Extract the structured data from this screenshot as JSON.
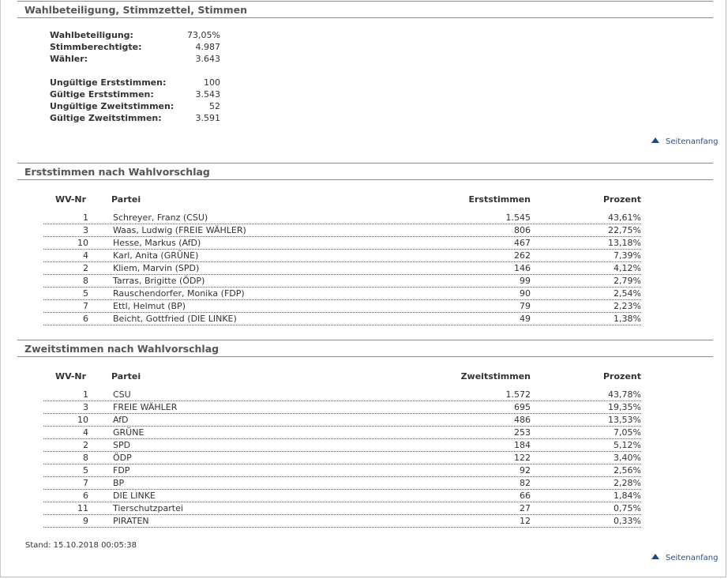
{
  "sections": {
    "turnout_title": "Wahlbeteiligung, Stimmzettel, Stimmen",
    "first_votes_title": "Erststimmen nach Wahlvorschlag",
    "second_votes_title": "Zweitstimmen nach Wahlvorschlag"
  },
  "turnout": [
    {
      "label": "Wahlbeteiligung:",
      "value": "73,05%"
    },
    {
      "label": "Stimmberechtigte:",
      "value": "4.987"
    },
    {
      "label": "Wähler:",
      "value": "3.643"
    }
  ],
  "ballots": [
    {
      "label": "Ungültige Erststimmen:",
      "value": "100"
    },
    {
      "label": "Gültige Erststimmen:",
      "value": "3.543"
    },
    {
      "label": "Ungültige Zweitstimmen:",
      "value": "52"
    },
    {
      "label": "Gültige Zweitstimmen:",
      "value": "3.591"
    }
  ],
  "top_link": "Seitenanfang",
  "first_table": {
    "headers": {
      "nr": "WV-Nr",
      "party": "Partei",
      "votes": "Erststimmen",
      "pct": "Prozent"
    },
    "rows": [
      {
        "nr": "1",
        "name": "Schreyer, Franz (CSU)",
        "votes": "1.545",
        "pct": "43,61%"
      },
      {
        "nr": "3",
        "name": "Waas, Ludwig (FREIE WÄHLER)",
        "votes": "806",
        "pct": "22,75%"
      },
      {
        "nr": "10",
        "name": "Hesse, Markus (AfD)",
        "votes": "467",
        "pct": "13,18%"
      },
      {
        "nr": "4",
        "name": "Karl, Anita (GRÜNE)",
        "votes": "262",
        "pct": "7,39%"
      },
      {
        "nr": "2",
        "name": "Kliem, Marvin (SPD)",
        "votes": "146",
        "pct": "4,12%"
      },
      {
        "nr": "8",
        "name": "Tarras, Brigitte (ÖDP)",
        "votes": "99",
        "pct": "2,79%"
      },
      {
        "nr": "5",
        "name": "Rauschendorfer, Monika (FDP)",
        "votes": "90",
        "pct": "2,54%"
      },
      {
        "nr": "7",
        "name": "Ettl, Helmut (BP)",
        "votes": "79",
        "pct": "2,23%"
      },
      {
        "nr": "6",
        "name": "Beicht, Gottfried (DIE LINKE)",
        "votes": "49",
        "pct": "1,38%"
      }
    ]
  },
  "second_table": {
    "headers": {
      "nr": "WV-Nr",
      "party": "Partei",
      "votes": "Zweitstimmen",
      "pct": "Prozent"
    },
    "rows": [
      {
        "nr": "1",
        "name": "CSU",
        "votes": "1.572",
        "pct": "43,78%"
      },
      {
        "nr": "3",
        "name": "FREIE WÄHLER",
        "votes": "695",
        "pct": "19,35%"
      },
      {
        "nr": "10",
        "name": "AfD",
        "votes": "486",
        "pct": "13,53%"
      },
      {
        "nr": "4",
        "name": "GRÜNE",
        "votes": "253",
        "pct": "7,05%"
      },
      {
        "nr": "2",
        "name": "SPD",
        "votes": "184",
        "pct": "5,12%"
      },
      {
        "nr": "8",
        "name": "ÖDP",
        "votes": "122",
        "pct": "3,40%"
      },
      {
        "nr": "5",
        "name": "FDP",
        "votes": "92",
        "pct": "2,56%"
      },
      {
        "nr": "7",
        "name": "BP",
        "votes": "82",
        "pct": "2,28%"
      },
      {
        "nr": "6",
        "name": "DIE LINKE",
        "votes": "66",
        "pct": "1,84%"
      },
      {
        "nr": "11",
        "name": "Tierschutzpartei",
        "votes": "27",
        "pct": "0,75%"
      },
      {
        "nr": "9",
        "name": "PIRATEN",
        "votes": "12",
        "pct": "0,33%"
      }
    ]
  },
  "stand": "Stand: 15.10.2018 00:05:38",
  "colors": {
    "link": "#2b4f86",
    "rule": "#8a8a8a",
    "title": "#555555"
  }
}
